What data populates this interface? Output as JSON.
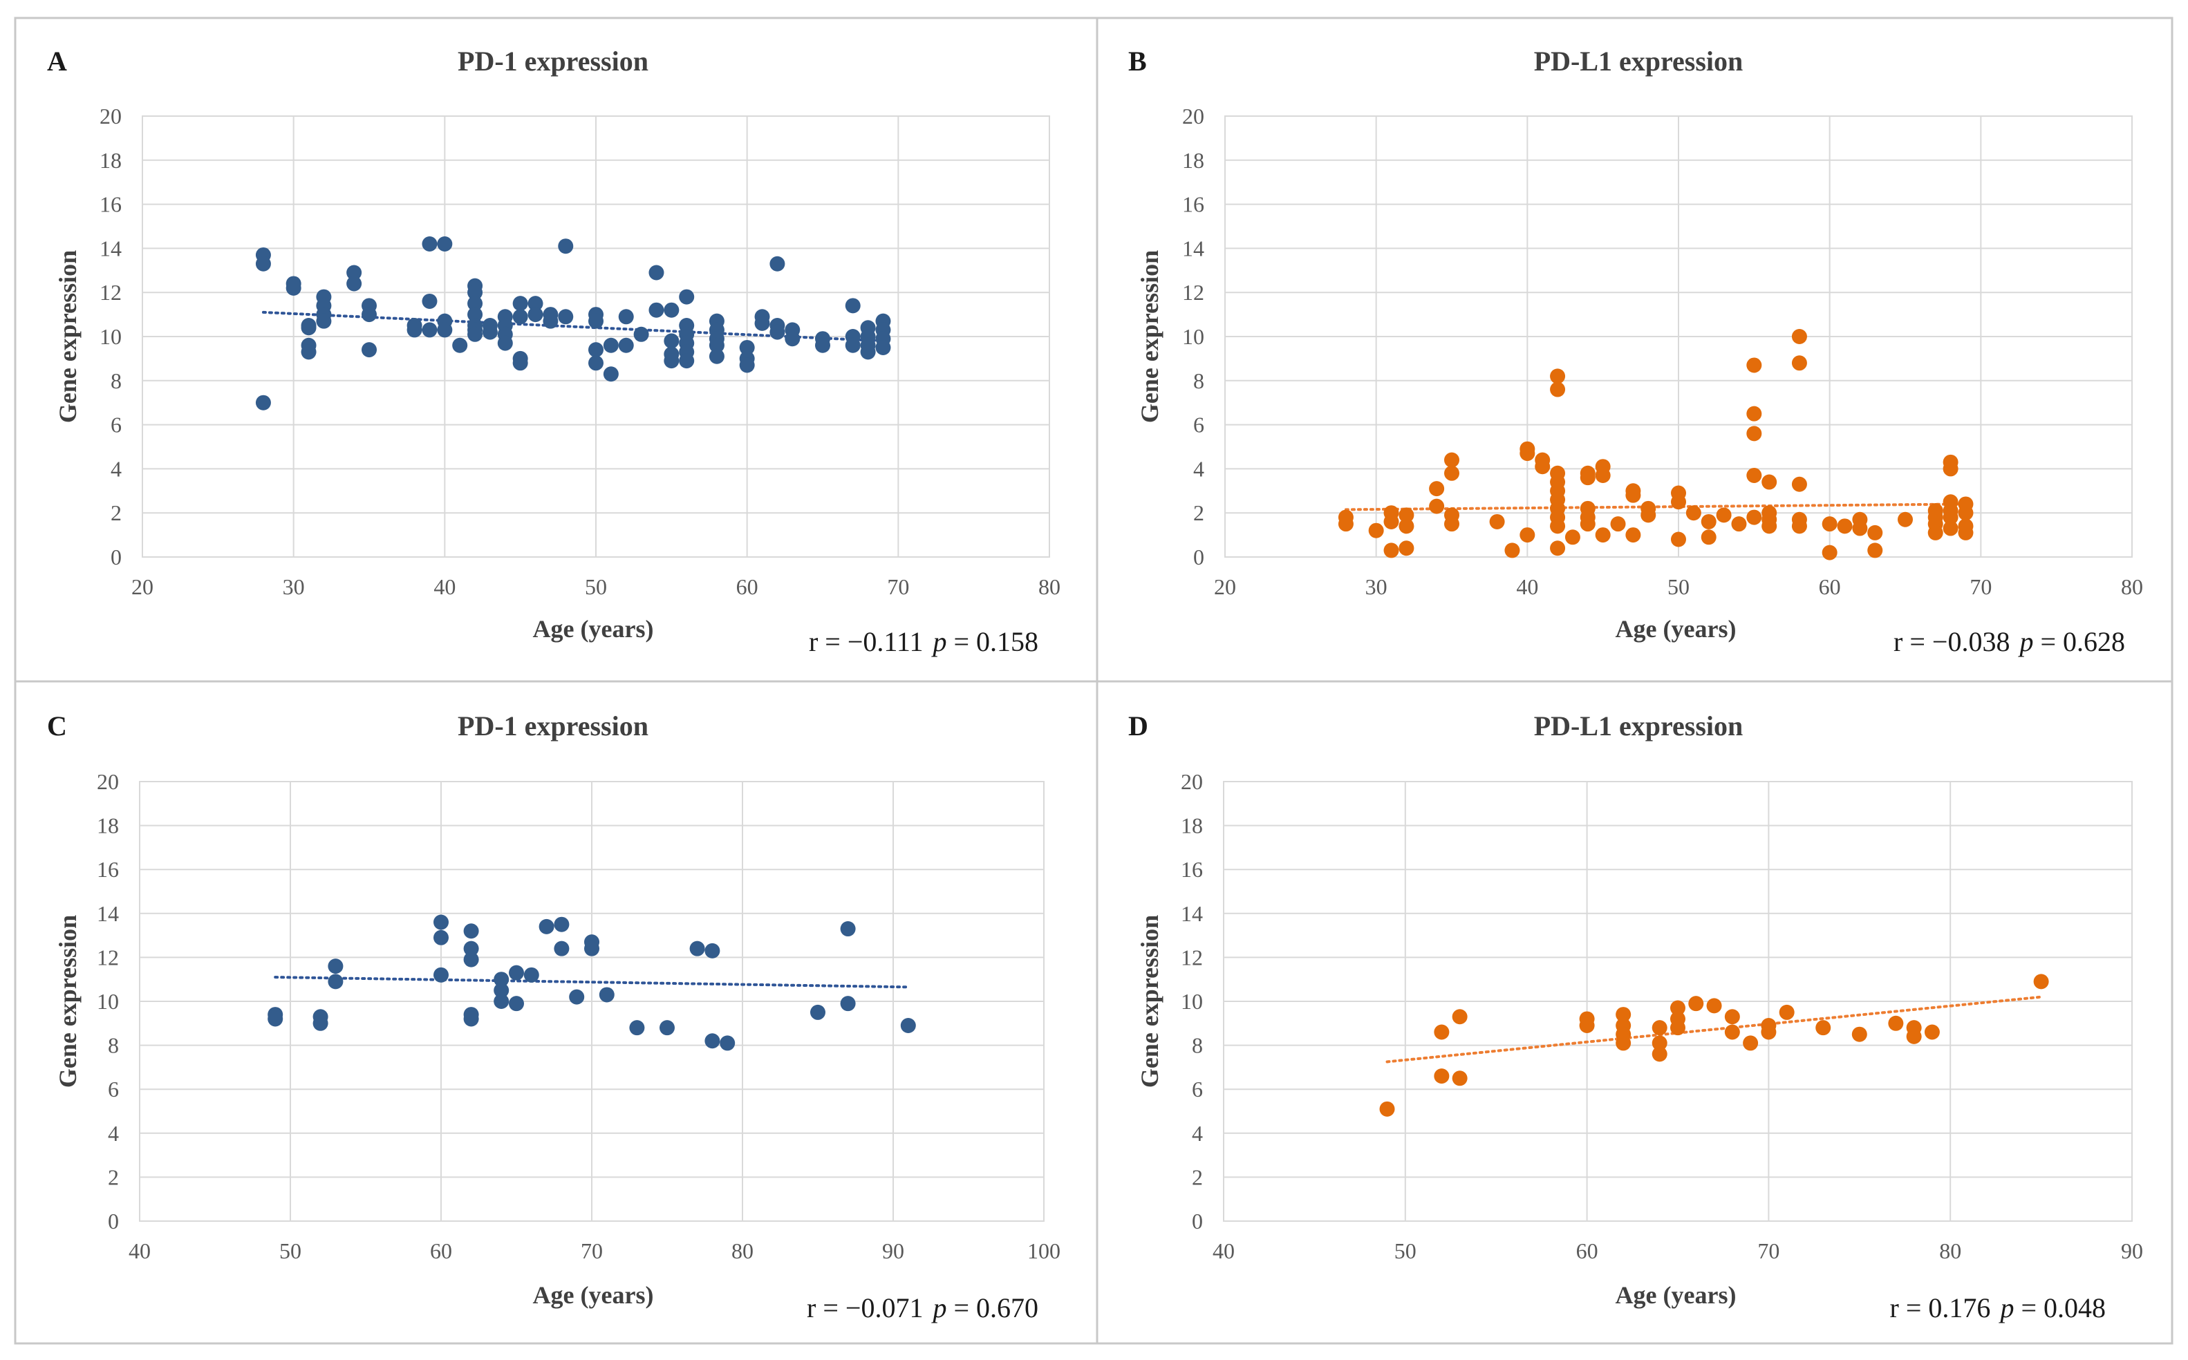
{
  "chart_data": [
    {
      "panel": "A",
      "type": "scatter",
      "title": "PD-1 expression",
      "xlabel": "Age (years)",
      "ylabel": "Gene expression",
      "xlim": [
        20,
        80
      ],
      "xticks": [
        20,
        30,
        40,
        50,
        60,
        70,
        80
      ],
      "ylim": [
        0,
        20
      ],
      "yticks": [
        0,
        2,
        4,
        6,
        8,
        10,
        12,
        14,
        16,
        18,
        20
      ],
      "color": "#335c8c",
      "trend_color": "#2f5597",
      "trendline": {
        "x": [
          28,
          69
        ],
        "y": [
          11.1,
          9.8
        ]
      },
      "stats": {
        "r": "r = −0.111",
        "p_label": "p",
        "p_value": "= 0.158"
      },
      "points": [
        [
          28,
          13.7
        ],
        [
          28,
          13.3
        ],
        [
          28,
          7.0
        ],
        [
          30,
          12.4
        ],
        [
          30,
          12.2
        ],
        [
          31,
          10.5
        ],
        [
          31,
          10.4
        ],
        [
          31,
          9.6
        ],
        [
          31,
          9.3
        ],
        [
          32,
          11.8
        ],
        [
          32,
          11.4
        ],
        [
          32,
          11.0
        ],
        [
          32,
          10.7
        ],
        [
          34,
          12.9
        ],
        [
          34,
          12.4
        ],
        [
          35,
          11.4
        ],
        [
          35,
          11.0
        ],
        [
          35,
          9.4
        ],
        [
          38,
          10.5
        ],
        [
          38,
          10.3
        ],
        [
          39,
          14.2
        ],
        [
          39,
          11.6
        ],
        [
          39,
          10.3
        ],
        [
          40,
          14.2
        ],
        [
          40,
          10.7
        ],
        [
          40,
          10.3
        ],
        [
          41,
          9.6
        ],
        [
          42,
          12.3
        ],
        [
          42,
          12.0
        ],
        [
          42,
          11.5
        ],
        [
          42,
          11.0
        ],
        [
          42,
          10.5
        ],
        [
          42,
          10.3
        ],
        [
          42,
          10.1
        ],
        [
          43,
          10.5
        ],
        [
          43,
          10.2
        ],
        [
          44,
          10.9
        ],
        [
          44,
          10.5
        ],
        [
          44,
          10.1
        ],
        [
          44,
          9.7
        ],
        [
          45,
          11.5
        ],
        [
          45,
          10.9
        ],
        [
          45,
          9.0
        ],
        [
          45,
          8.8
        ],
        [
          46,
          11.5
        ],
        [
          46,
          11.0
        ],
        [
          47,
          11.0
        ],
        [
          47,
          10.7
        ],
        [
          48,
          14.1
        ],
        [
          48,
          10.9
        ],
        [
          50,
          11.0
        ],
        [
          50,
          10.7
        ],
        [
          50,
          9.4
        ],
        [
          50,
          8.8
        ],
        [
          51,
          9.6
        ],
        [
          51,
          8.3
        ],
        [
          52,
          10.9
        ],
        [
          52,
          9.6
        ],
        [
          53,
          10.1
        ],
        [
          54,
          12.9
        ],
        [
          54,
          11.2
        ],
        [
          55,
          11.2
        ],
        [
          55,
          9.8
        ],
        [
          55,
          9.2
        ],
        [
          55,
          8.9
        ],
        [
          56,
          11.8
        ],
        [
          56,
          10.5
        ],
        [
          56,
          10.1
        ],
        [
          56,
          9.7
        ],
        [
          56,
          9.3
        ],
        [
          56,
          8.9
        ],
        [
          58,
          10.7
        ],
        [
          58,
          10.3
        ],
        [
          58,
          9.9
        ],
        [
          58,
          9.6
        ],
        [
          58,
          9.1
        ],
        [
          60,
          9.5
        ],
        [
          60,
          9.0
        ],
        [
          60,
          8.7
        ],
        [
          61,
          10.9
        ],
        [
          61,
          10.6
        ],
        [
          62,
          13.3
        ],
        [
          62,
          10.5
        ],
        [
          62,
          10.2
        ],
        [
          63,
          10.3
        ],
        [
          63,
          9.9
        ],
        [
          65,
          9.9
        ],
        [
          65,
          9.6
        ],
        [
          67,
          11.4
        ],
        [
          67,
          10.0
        ],
        [
          67,
          9.6
        ],
        [
          68,
          10.4
        ],
        [
          68,
          10.0
        ],
        [
          68,
          9.6
        ],
        [
          68,
          9.3
        ],
        [
          69,
          10.7
        ],
        [
          69,
          10.3
        ],
        [
          69,
          9.9
        ],
        [
          69,
          9.5
        ]
      ]
    },
    {
      "panel": "B",
      "type": "scatter",
      "title": "PD-L1 expression",
      "xlabel": "Age (years)",
      "ylabel": "Gene expression",
      "xlim": [
        20,
        80
      ],
      "xticks": [
        20,
        30,
        40,
        50,
        60,
        70,
        80
      ],
      "ylim": [
        0,
        20
      ],
      "yticks": [
        0,
        2,
        4,
        6,
        8,
        10,
        12,
        14,
        16,
        18,
        20
      ],
      "color": "#e36c0a",
      "trend_color": "#ed7d31",
      "trendline": {
        "x": [
          28,
          69
        ],
        "y": [
          2.15,
          2.4
        ]
      },
      "stats": {
        "r": "r = −0.038",
        "p_label": "p",
        "p_value": "= 0.628"
      },
      "points": [
        [
          28,
          1.8
        ],
        [
          28,
          1.5
        ],
        [
          30,
          1.2
        ],
        [
          31,
          2.0
        ],
        [
          31,
          1.6
        ],
        [
          31,
          0.3
        ],
        [
          32,
          1.9
        ],
        [
          32,
          1.4
        ],
        [
          32,
          0.4
        ],
        [
          34,
          3.1
        ],
        [
          34,
          2.3
        ],
        [
          35,
          4.4
        ],
        [
          35,
          3.8
        ],
        [
          35,
          1.9
        ],
        [
          35,
          1.5
        ],
        [
          38,
          1.6
        ],
        [
          39,
          0.3
        ],
        [
          40,
          4.9
        ],
        [
          40,
          4.7
        ],
        [
          40,
          1.0
        ],
        [
          41,
          4.4
        ],
        [
          41,
          4.1
        ],
        [
          42,
          8.2
        ],
        [
          42,
          7.6
        ],
        [
          42,
          3.8
        ],
        [
          42,
          3.4
        ],
        [
          42,
          3.0
        ],
        [
          42,
          2.6
        ],
        [
          42,
          2.2
        ],
        [
          42,
          1.8
        ],
        [
          42,
          1.4
        ],
        [
          42,
          0.4
        ],
        [
          43,
          0.9
        ],
        [
          44,
          3.8
        ],
        [
          44,
          3.6
        ],
        [
          44,
          2.2
        ],
        [
          44,
          1.8
        ],
        [
          44,
          1.5
        ],
        [
          45,
          4.1
        ],
        [
          45,
          3.7
        ],
        [
          45,
          1.0
        ],
        [
          46,
          1.5
        ],
        [
          47,
          3.0
        ],
        [
          47,
          2.8
        ],
        [
          47,
          1.0
        ],
        [
          48,
          2.2
        ],
        [
          48,
          1.9
        ],
        [
          50,
          2.9
        ],
        [
          50,
          2.5
        ],
        [
          50,
          0.8
        ],
        [
          51,
          2.0
        ],
        [
          52,
          1.6
        ],
        [
          52,
          0.9
        ],
        [
          53,
          1.9
        ],
        [
          54,
          1.5
        ],
        [
          55,
          8.7
        ],
        [
          55,
          6.5
        ],
        [
          55,
          5.6
        ],
        [
          55,
          3.7
        ],
        [
          55,
          1.8
        ],
        [
          56,
          3.4
        ],
        [
          56,
          2.0
        ],
        [
          56,
          1.7
        ],
        [
          56,
          1.4
        ],
        [
          58,
          10.0
        ],
        [
          58,
          8.8
        ],
        [
          58,
          3.3
        ],
        [
          58,
          1.7
        ],
        [
          58,
          1.4
        ],
        [
          60,
          1.5
        ],
        [
          60,
          0.2
        ],
        [
          61,
          1.4
        ],
        [
          62,
          1.7
        ],
        [
          62,
          1.3
        ],
        [
          63,
          1.1
        ],
        [
          63,
          0.3
        ],
        [
          65,
          1.7
        ],
        [
          67,
          2.1
        ],
        [
          67,
          1.8
        ],
        [
          67,
          1.5
        ],
        [
          67,
          1.1
        ],
        [
          68,
          4.3
        ],
        [
          68,
          4.0
        ],
        [
          68,
          2.5
        ],
        [
          68,
          2.1
        ],
        [
          68,
          1.8
        ],
        [
          68,
          1.3
        ],
        [
          69,
          2.4
        ],
        [
          69,
          2.0
        ],
        [
          69,
          1.4
        ],
        [
          69,
          1.1
        ]
      ]
    },
    {
      "panel": "C",
      "type": "scatter",
      "title": "PD-1 expression",
      "xlabel": "Age (years)",
      "ylabel": "Gene expression",
      "xlim": [
        40,
        100
      ],
      "xticks": [
        40,
        50,
        60,
        70,
        80,
        90,
        100
      ],
      "ylim": [
        0,
        20
      ],
      "yticks": [
        0,
        2,
        4,
        6,
        8,
        10,
        12,
        14,
        16,
        18,
        20
      ],
      "color": "#335c8c",
      "trend_color": "#2f5597",
      "trendline": {
        "x": [
          49,
          91
        ],
        "y": [
          11.1,
          10.65
        ]
      },
      "stats": {
        "r": "r = −0.071",
        "p_label": "p",
        "p_value": "= 0.670"
      },
      "points": [
        [
          49,
          9.4
        ],
        [
          49,
          9.2
        ],
        [
          52,
          9.3
        ],
        [
          52,
          9.0
        ],
        [
          53,
          11.6
        ],
        [
          53,
          10.9
        ],
        [
          60,
          13.6
        ],
        [
          60,
          12.9
        ],
        [
          60,
          11.2
        ],
        [
          62,
          13.2
        ],
        [
          62,
          12.4
        ],
        [
          62,
          11.9
        ],
        [
          62,
          9.4
        ],
        [
          62,
          9.2
        ],
        [
          64,
          11.0
        ],
        [
          64,
          10.5
        ],
        [
          64,
          10.0
        ],
        [
          65,
          11.3
        ],
        [
          65,
          9.9
        ],
        [
          66,
          11.2
        ],
        [
          67,
          13.4
        ],
        [
          68,
          13.5
        ],
        [
          68,
          12.4
        ],
        [
          69,
          10.2
        ],
        [
          70,
          12.7
        ],
        [
          70,
          12.4
        ],
        [
          71,
          10.3
        ],
        [
          73,
          8.8
        ],
        [
          75,
          8.8
        ],
        [
          77,
          12.4
        ],
        [
          78,
          12.3
        ],
        [
          78,
          8.2
        ],
        [
          79,
          8.1
        ],
        [
          85,
          9.5
        ],
        [
          87,
          13.3
        ],
        [
          87,
          9.9
        ],
        [
          91,
          8.9
        ]
      ]
    },
    {
      "panel": "D",
      "type": "scatter",
      "title": "PD-L1 expression",
      "xlabel": "Age (years)",
      "ylabel": "Gene expression",
      "xlim": [
        40,
        90
      ],
      "xticks": [
        40,
        50,
        60,
        70,
        80,
        90
      ],
      "ylim": [
        0,
        20
      ],
      "yticks": [
        0,
        2,
        4,
        6,
        8,
        10,
        12,
        14,
        16,
        18,
        20
      ],
      "color": "#e36c0a",
      "trend_color": "#ed7d31",
      "trendline": {
        "x": [
          49,
          85
        ],
        "y": [
          7.25,
          10.2
        ]
      },
      "stats": {
        "r": "r = 0.176",
        "p_label": "p",
        "p_value": "= 0.048"
      },
      "points": [
        [
          49,
          5.1
        ],
        [
          52,
          8.6
        ],
        [
          52,
          6.6
        ],
        [
          53,
          9.3
        ],
        [
          53,
          6.5
        ],
        [
          60,
          9.2
        ],
        [
          60,
          8.9
        ],
        [
          62,
          9.4
        ],
        [
          62,
          8.9
        ],
        [
          62,
          8.5
        ],
        [
          62,
          8.1
        ],
        [
          64,
          8.8
        ],
        [
          64,
          8.1
        ],
        [
          64,
          7.6
        ],
        [
          65,
          9.7
        ],
        [
          65,
          9.2
        ],
        [
          65,
          8.8
        ],
        [
          66,
          9.9
        ],
        [
          67,
          9.8
        ],
        [
          68,
          9.3
        ],
        [
          68,
          8.6
        ],
        [
          69,
          8.1
        ],
        [
          70,
          8.9
        ],
        [
          70,
          8.6
        ],
        [
          71,
          9.5
        ],
        [
          73,
          8.8
        ],
        [
          75,
          8.5
        ],
        [
          77,
          9.0
        ],
        [
          78,
          8.8
        ],
        [
          78,
          8.4
        ],
        [
          79,
          8.6
        ],
        [
          85,
          10.9
        ]
      ]
    }
  ]
}
